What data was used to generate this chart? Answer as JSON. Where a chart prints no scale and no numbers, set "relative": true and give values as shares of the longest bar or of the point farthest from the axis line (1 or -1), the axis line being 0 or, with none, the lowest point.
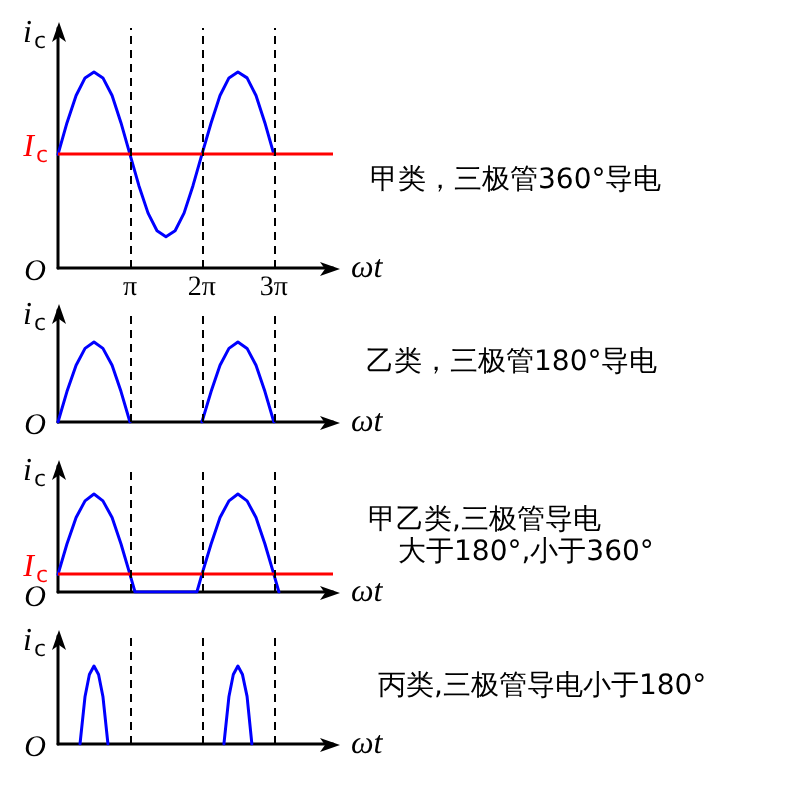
{
  "chart_data": [
    {
      "type": "line",
      "ylabel": "i$_{c}$",
      "xlabel": "ωt",
      "relative": true,
      "xlim": [
        0,
        12
      ],
      "xticks": [
        {
          "value": 3.14,
          "label": "π"
        },
        {
          "value": 6.28,
          "label": "2π"
        },
        {
          "value": 9.42,
          "label": "3π"
        }
      ],
      "tick_labels": "x",
      "marker": "none",
      "grid": false,
      "x": [
        0,
        0.39,
        0.79,
        1.18,
        1.57,
        1.96,
        2.36,
        2.75,
        3.14,
        3.53,
        3.93,
        4.32,
        4.71,
        5.11,
        5.5,
        5.89,
        6.28,
        6.68,
        7.07,
        7.46,
        7.85,
        8.25,
        8.64,
        9.03,
        9.42
      ],
      "series": [
        {
          "color": "#0000ff",
          "values": [
            0.58,
            0.74,
            0.88,
            0.97,
            1,
            0.97,
            0.88,
            0.74,
            0.58,
            0.42,
            0.28,
            0.19,
            0.16,
            0.19,
            0.28,
            0.42,
            0.58,
            0.74,
            0.88,
            0.97,
            1,
            0.97,
            0.88,
            0.74,
            0.58
          ]
        }
      ],
      "ref_lines": [
        {
          "axis": "y",
          "value": 0.58,
          "label": "I$_{c}$",
          "color": "#ff0000"
        },
        {
          "axis": "x",
          "value": 3.14,
          "color": "#000000",
          "line_style": "dashed"
        },
        {
          "axis": "x",
          "value": 6.28,
          "color": "#000000",
          "line_style": "dashed"
        },
        {
          "axis": "x",
          "value": 9.42,
          "color": "#000000",
          "line_style": "dashed"
        }
      ],
      "annotations": [
        "O",
        "甲类，三极管360°导电"
      ]
    },
    {
      "type": "line",
      "ylabel": "i$_{c}$",
      "xlabel": "ωt",
      "relative": true,
      "xlim": [
        0,
        12
      ],
      "tick_labels": false,
      "marker": "none",
      "grid": false,
      "x": [
        0,
        0.39,
        0.79,
        1.18,
        1.57,
        1.96,
        2.36,
        2.75,
        3.14,
        4.71,
        6.28,
        6.68,
        7.07,
        7.46,
        7.85,
        8.25,
        8.64,
        9.03,
        9.42
      ],
      "series": [
        {
          "color": "#0000ff",
          "values": [
            0,
            0.38,
            0.71,
            0.92,
            1,
            0.92,
            0.71,
            0.38,
            0,
            null,
            0,
            0.38,
            0.71,
            0.92,
            1,
            0.92,
            0.71,
            0.38,
            0
          ]
        }
      ],
      "ref_lines": [
        {
          "axis": "x",
          "value": 3.14,
          "color": "#000000",
          "line_style": "dashed"
        },
        {
          "axis": "x",
          "value": 6.28,
          "color": "#000000",
          "line_style": "dashed"
        },
        {
          "axis": "x",
          "value": 9.42,
          "color": "#000000",
          "line_style": "dashed"
        }
      ],
      "annotations": [
        "O",
        "乙类，三极管180°导电"
      ]
    },
    {
      "type": "line",
      "ylabel": "i$_{c}$",
      "xlabel": "ωt",
      "relative": true,
      "xlim": [
        0,
        12
      ],
      "tick_labels": false,
      "marker": "none",
      "grid": false,
      "x": [
        0,
        0.39,
        0.79,
        1.18,
        1.57,
        1.96,
        2.36,
        2.75,
        3.14,
        3.36,
        6.06,
        6.28,
        6.68,
        7.07,
        7.46,
        7.85,
        8.25,
        8.64,
        9.03,
        9.42,
        9.64
      ],
      "series": [
        {
          "color": "#0000ff",
          "values": [
            0.18,
            0.49,
            0.76,
            0.93,
            1,
            0.93,
            0.76,
            0.49,
            0.18,
            0,
            0,
            0.18,
            0.49,
            0.76,
            0.93,
            1,
            0.93,
            0.76,
            0.49,
            0.18,
            0
          ]
        }
      ],
      "ref_lines": [
        {
          "axis": "y",
          "value": 0.18,
          "label": "I$_{c}$",
          "color": "#ff0000"
        },
        {
          "axis": "x",
          "value": 3.14,
          "color": "#000000",
          "line_style": "dashed"
        },
        {
          "axis": "x",
          "value": 6.28,
          "color": "#000000",
          "line_style": "dashed"
        },
        {
          "axis": "x",
          "value": 9.42,
          "color": "#000000",
          "line_style": "dashed"
        }
      ],
      "annotations": [
        "O",
        "甲乙类,三极管导电",
        "大于180°,小于360°"
      ]
    },
    {
      "type": "line",
      "ylabel": "i$_{c}$",
      "xlabel": "ωt",
      "relative": true,
      "xlim": [
        0,
        12
      ],
      "tick_labels": false,
      "marker": "none",
      "grid": false,
      "x": [
        0.96,
        1.18,
        1.37,
        1.57,
        1.77,
        1.96,
        2.18,
        4.71,
        7.24,
        7.46,
        7.65,
        7.85,
        8.05,
        8.25,
        8.46
      ],
      "series": [
        {
          "color": "#0000ff",
          "values": [
            0,
            0.61,
            0.89,
            1,
            0.89,
            0.61,
            0,
            null,
            0,
            0.61,
            0.89,
            1,
            0.89,
            0.61,
            0
          ]
        }
      ],
      "ref_lines": [
        {
          "axis": "x",
          "value": 3.14,
          "color": "#000000",
          "line_style": "dashed"
        },
        {
          "axis": "x",
          "value": 6.28,
          "color": "#000000",
          "line_style": "dashed"
        },
        {
          "axis": "x",
          "value": 9.42,
          "color": "#000000",
          "line_style": "dashed"
        }
      ],
      "annotations": [
        "O",
        "丙类,三极管导电小于180°"
      ]
    }
  ]
}
